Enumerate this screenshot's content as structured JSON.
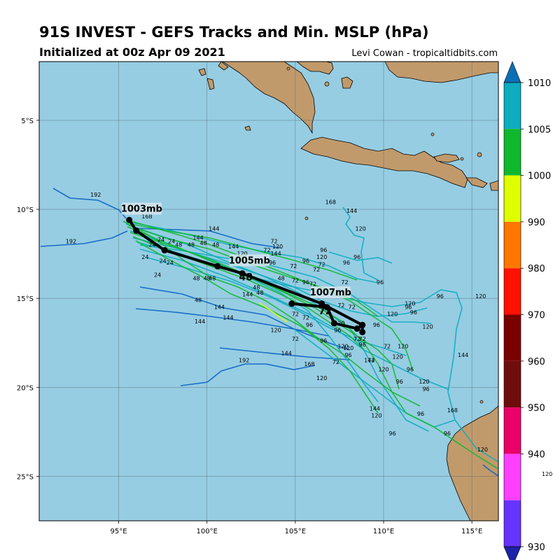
{
  "title": "91S INVEST - GEFS Tracks and Min. MSLP (hPa)",
  "subtitle": "Initialized at 00z Apr 09 2021",
  "credit": "Levi Cowan - tropicaltidbits.com",
  "colors": {
    "ocean": "#96cde3",
    "land": "#c19a6b",
    "mean_track": "#000000"
  },
  "map": {
    "lon_range": [
      90.5,
      116.5
    ],
    "lat_range": [
      -27.5,
      -1.7
    ],
    "lon_ticks": [
      {
        "value": 95,
        "label": "95°E"
      },
      {
        "value": 100,
        "label": "100°E"
      },
      {
        "value": 105,
        "label": "105°E"
      },
      {
        "value": 110,
        "label": "110°E"
      },
      {
        "value": 115,
        "label": "115°E"
      }
    ],
    "lat_ticks": [
      {
        "value": -5,
        "label": "5°S"
      },
      {
        "value": -10,
        "label": "10°S"
      },
      {
        "value": -15,
        "label": "15°S"
      },
      {
        "value": -20,
        "label": "20°S"
      },
      {
        "value": -25,
        "label": "25°S"
      }
    ]
  },
  "mean_tracks": [
    {
      "name": "mean-track-a",
      "points": [
        [
          95.6,
          -10.6
        ],
        [
          96.0,
          -11.2
        ],
        [
          97.6,
          -12.3
        ],
        [
          100.6,
          -13.2
        ],
        [
          102.0,
          -13.6
        ],
        [
          106.5,
          -15.3
        ],
        [
          108.8,
          -16.5
        ],
        [
          108.8,
          -16.9
        ]
      ]
    },
    {
      "name": "mean-track-b",
      "points": [
        [
          104.8,
          -15.3
        ],
        [
          106.8,
          -15.5
        ],
        [
          107.2,
          -16.4
        ],
        [
          108.5,
          -16.7
        ],
        [
          108.8,
          -16.5
        ]
      ]
    }
  ],
  "pressure_labels": [
    {
      "text": "1003mb",
      "lon": 96.3,
      "lat": -10.1
    },
    {
      "text": "1005mb",
      "lon": 102.4,
      "lat": -13.0
    },
    {
      "text": "1007mb",
      "lon": 107.0,
      "lat": -14.8
    }
  ],
  "mean_hour_labels": [
    {
      "text": "48",
      "lon": 102.2,
      "lat": -14.0
    },
    {
      "text": "72",
      "lon": 106.7,
      "lat": -15.9
    }
  ],
  "member_hour_labels": [
    {
      "text": "168",
      "lon": 96.6,
      "lat": -10.5
    },
    {
      "text": "192",
      "lon": 93.7,
      "lat": -9.3
    },
    {
      "text": "192",
      "lon": 92.3,
      "lat": -11.9
    },
    {
      "text": "144",
      "lon": 100.4,
      "lat": -11.2
    },
    {
      "text": "144",
      "lon": 99.5,
      "lat": -11.7
    },
    {
      "text": "144",
      "lon": 101.5,
      "lat": -12.2
    },
    {
      "text": "120",
      "lon": 102.0,
      "lat": -12.6
    },
    {
      "text": "72",
      "lon": 103.8,
      "lat": -11.9
    },
    {
      "text": "120",
      "lon": 104.0,
      "lat": -12.2
    },
    {
      "text": "72",
      "lon": 103.4,
      "lat": -12.4
    },
    {
      "text": "144",
      "lon": 103.9,
      "lat": -12.6
    },
    {
      "text": "96",
      "lon": 103.7,
      "lat": -13.1
    },
    {
      "text": "72",
      "lon": 104.9,
      "lat": -13.3
    },
    {
      "text": "96",
      "lon": 105.6,
      "lat": -13.0
    },
    {
      "text": "72",
      "lon": 106.2,
      "lat": -13.5
    },
    {
      "text": "72",
      "lon": 106.5,
      "lat": -13.2
    },
    {
      "text": "96",
      "lon": 106.6,
      "lat": -12.4
    },
    {
      "text": "120",
      "lon": 106.5,
      "lat": -12.8
    },
    {
      "text": "96",
      "lon": 107.9,
      "lat": -13.1
    },
    {
      "text": "96",
      "lon": 108.5,
      "lat": -12.8
    },
    {
      "text": "72",
      "lon": 107.8,
      "lat": -14.2
    },
    {
      "text": "96",
      "lon": 109.8,
      "lat": -14.2
    },
    {
      "text": "72",
      "lon": 105.0,
      "lat": -14.1
    },
    {
      "text": "96",
      "lon": 105.6,
      "lat": -14.2
    },
    {
      "text": "72",
      "lon": 106.0,
      "lat": -14.3
    },
    {
      "text": "48",
      "lon": 104.2,
      "lat": -14.0
    },
    {
      "text": "48",
      "lon": 99.8,
      "lat": -12.0
    },
    {
      "text": "48",
      "lon": 100.5,
      "lat": -12.1
    },
    {
      "text": "48",
      "lon": 99.1,
      "lat": -12.1
    },
    {
      "text": "48",
      "lon": 98.4,
      "lat": -12.1
    },
    {
      "text": "24",
      "lon": 97.4,
      "lat": -11.8
    },
    {
      "text": "24",
      "lon": 98.0,
      "lat": -11.9
    },
    {
      "text": "24",
      "lon": 96.9,
      "lat": -12.1
    },
    {
      "text": "24",
      "lon": 96.5,
      "lat": -12.8
    },
    {
      "text": "24",
      "lon": 97.5,
      "lat": -13.0
    },
    {
      "text": "24",
      "lon": 97.9,
      "lat": -13.1
    },
    {
      "text": "24",
      "lon": 97.2,
      "lat": -13.8
    },
    {
      "text": "48",
      "lon": 99.4,
      "lat": -14.0
    },
    {
      "text": "48",
      "lon": 100.3,
      "lat": -14.0
    },
    {
      "text": "48",
      "lon": 100.0,
      "lat": -14.0
    },
    {
      "text": "48",
      "lon": 99.5,
      "lat": -15.2
    },
    {
      "text": "48",
      "lon": 102.8,
      "lat": -14.5
    },
    {
      "text": "48",
      "lon": 103.0,
      "lat": -14.8
    },
    {
      "text": "144",
      "lon": 102.3,
      "lat": -14.9
    },
    {
      "text": "144",
      "lon": 100.7,
      "lat": -15.6
    },
    {
      "text": "144",
      "lon": 101.2,
      "lat": -16.2
    },
    {
      "text": "144",
      "lon": 99.6,
      "lat": -16.4
    },
    {
      "text": "120",
      "lon": 103.9,
      "lat": -16.9
    },
    {
      "text": "72",
      "lon": 105.0,
      "lat": -16.0
    },
    {
      "text": "72",
      "lon": 105.6,
      "lat": -16.2
    },
    {
      "text": "72",
      "lon": 105.0,
      "lat": -17.4
    },
    {
      "text": "96",
      "lon": 105.8,
      "lat": -16.6
    },
    {
      "text": "96",
      "lon": 106.6,
      "lat": -17.5
    },
    {
      "text": "144",
      "lon": 104.5,
      "lat": -18.2
    },
    {
      "text": "192",
      "lon": 102.1,
      "lat": -18.6
    },
    {
      "text": "168",
      "lon": 105.8,
      "lat": -18.8
    },
    {
      "text": "120",
      "lon": 106.5,
      "lat": -19.6
    },
    {
      "text": "72",
      "lon": 107.3,
      "lat": -18.7
    },
    {
      "text": "120",
      "lon": 107.7,
      "lat": -17.8
    },
    {
      "text": "120",
      "lon": 107.5,
      "lat": -16.5
    },
    {
      "text": "96",
      "lon": 107.4,
      "lat": -16.9
    },
    {
      "text": "96",
      "lon": 108.0,
      "lat": -18.3
    },
    {
      "text": "120",
      "lon": 108.0,
      "lat": -17.9
    },
    {
      "text": "72",
      "lon": 108.5,
      "lat": -17.4
    },
    {
      "text": "72",
      "lon": 108.8,
      "lat": -17.4
    },
    {
      "text": "96",
      "lon": 108.8,
      "lat": -17.7
    },
    {
      "text": "144",
      "lon": 109.2,
      "lat": -18.6
    },
    {
      "text": "72",
      "lon": 109.3,
      "lat": -18.6
    },
    {
      "text": "120",
      "lon": 110.0,
      "lat": -19.1
    },
    {
      "text": "72",
      "lon": 110.2,
      "lat": -17.8
    },
    {
      "text": "120",
      "lon": 111.1,
      "lat": -17.8
    },
    {
      "text": "120",
      "lon": 110.8,
      "lat": -18.4
    },
    {
      "text": "96",
      "lon": 111.5,
      "lat": -19.1
    },
    {
      "text": "96",
      "lon": 110.9,
      "lat": -19.8
    },
    {
      "text": "120",
      "lon": 112.3,
      "lat": -19.8
    },
    {
      "text": "96",
      "lon": 112.4,
      "lat": -20.2
    },
    {
      "text": "144",
      "lon": 109.5,
      "lat": -21.3
    },
    {
      "text": "120",
      "lon": 109.6,
      "lat": -21.7
    },
    {
      "text": "96",
      "lon": 110.5,
      "lat": -22.7
    },
    {
      "text": "96",
      "lon": 112.1,
      "lat": -21.6
    },
    {
      "text": "96",
      "lon": 113.6,
      "lat": -22.7
    },
    {
      "text": "168",
      "lon": 113.9,
      "lat": -21.4
    },
    {
      "text": "144",
      "lon": 114.5,
      "lat": -18.3
    },
    {
      "text": "120",
      "lon": 115.5,
      "lat": -15.0
    },
    {
      "text": "120",
      "lon": 112.5,
      "lat": -16.7
    },
    {
      "text": "96",
      "lon": 113.2,
      "lat": -15.0
    },
    {
      "text": "120",
      "lon": 111.5,
      "lat": -15.4
    },
    {
      "text": "96",
      "lon": 111.4,
      "lat": -15.6
    },
    {
      "text": "96",
      "lon": 111.7,
      "lat": -15.9
    },
    {
      "text": "120",
      "lon": 110.5,
      "lat": -16.0
    },
    {
      "text": "96",
      "lon": 109.6,
      "lat": -16.6
    },
    {
      "text": "120",
      "lon": 108.7,
      "lat": -11.2
    },
    {
      "text": "144",
      "lon": 108.2,
      "lat": -10.2
    },
    {
      "text": "168",
      "lon": 107.0,
      "lat": -9.7
    },
    {
      "text": "72",
      "lon": 107.6,
      "lat": -15.5
    },
    {
      "text": "72",
      "lon": 108.2,
      "lat": -15.6
    },
    {
      "text": "120",
      "lon": 115.6,
      "lat": -23.6
    }
  ],
  "colorbar": {
    "ticks": [
      "1010",
      "1005",
      "1000",
      "990",
      "980",
      "970",
      "960",
      "950",
      "940",
      "930"
    ],
    "colors": [
      "#0dacbf",
      "#0fb92e",
      "#dfff00",
      "#ff7700",
      "#ff1100",
      "#7a0000",
      "#6f0d0d",
      "#ea0068",
      "#ff3fff",
      "#6633ff"
    ],
    "top_arrow_color": "#0b6fb6",
    "bottom_arrow_color": "#1d23a8",
    "stray_label": "120"
  }
}
